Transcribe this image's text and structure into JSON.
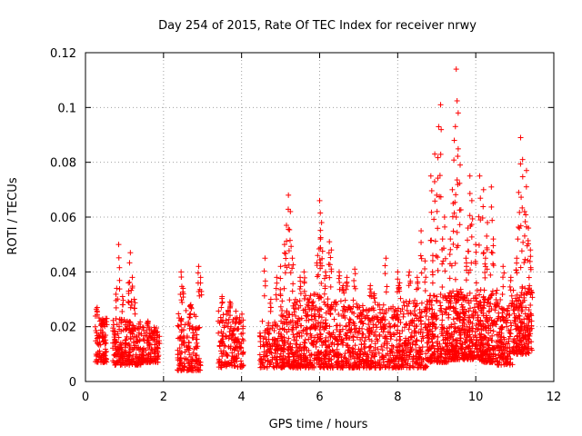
{
  "chart_data": {
    "type": "scatter",
    "title": "Day 254 of 2015, Rate Of TEC Index for receiver nrwy",
    "xlabel": "GPS time / hours",
    "ylabel": "ROTI / TECUs",
    "xlim": [
      0,
      12
    ],
    "ylim": [
      0,
      0.12
    ],
    "xticks": [
      0,
      2,
      4,
      6,
      8,
      10,
      12
    ],
    "xtick_labels": [
      "0",
      "2",
      "4",
      "6",
      "8",
      "10",
      "12"
    ],
    "yticks": [
      0,
      0.02,
      0.04,
      0.06,
      0.08,
      0.1,
      0.12
    ],
    "ytick_labels": [
      "0",
      "0.02",
      "0.04",
      "0.06",
      "0.08",
      "0.1",
      "0.12"
    ],
    "grid": true,
    "marker": "+",
    "series": [
      {
        "name": "ROTI",
        "color": "#ff0000",
        "clusters": [
          {
            "x": [
              0.25,
              0.55
            ],
            "y": [
              0.007,
              0.024
            ],
            "n": 90,
            "peaks": [
              [
                0.3,
                0.027
              ],
              [
                0.45,
                0.021
              ]
            ]
          },
          {
            "x": [
              0.7,
              1.05
            ],
            "y": [
              0.006,
              0.024
            ],
            "n": 110,
            "peaks": [
              [
                0.85,
                0.05
              ],
              [
                0.8,
                0.034
              ],
              [
                0.95,
                0.031
              ]
            ]
          },
          {
            "x": [
              1.05,
              1.45
            ],
            "y": [
              0.006,
              0.022
            ],
            "n": 120,
            "peaks": [
              [
                1.15,
                0.047
              ],
              [
                1.2,
                0.038
              ],
              [
                1.1,
                0.036
              ],
              [
                1.25,
                0.03
              ]
            ]
          },
          {
            "x": [
              1.45,
              1.9
            ],
            "y": [
              0.007,
              0.02
            ],
            "n": 120,
            "peaks": [
              [
                1.6,
                0.022
              ]
            ]
          },
          {
            "x": [
              2.35,
              2.95
            ],
            "y": [
              0.004,
              0.026
            ],
            "n": 160,
            "peaks": [
              [
                2.45,
                0.04
              ],
              [
                2.5,
                0.034
              ],
              [
                2.7,
                0.028
              ],
              [
                2.9,
                0.042
              ],
              [
                2.95,
                0.038
              ]
            ]
          },
          {
            "x": [
              3.4,
              4.05
            ],
            "y": [
              0.005,
              0.026
            ],
            "n": 170,
            "peaks": [
              [
                3.5,
                0.031
              ],
              [
                3.7,
                0.029
              ]
            ]
          },
          {
            "x": [
              4.45,
              5.05
            ],
            "y": [
              0.005,
              0.022
            ],
            "n": 130,
            "peaks": [
              [
                4.6,
                0.045
              ],
              [
                4.9,
                0.038
              ],
              [
                5.0,
                0.042
              ],
              [
                4.75,
                0.03
              ]
            ]
          },
          {
            "x": [
              5.0,
              5.6
            ],
            "y": [
              0.005,
              0.03
            ],
            "n": 200,
            "peaks": [
              [
                5.2,
                0.068
              ],
              [
                5.15,
                0.057
              ],
              [
                5.25,
                0.062
              ],
              [
                5.1,
                0.05
              ],
              [
                5.3,
                0.045
              ],
              [
                5.5,
                0.038
              ],
              [
                5.6,
                0.04
              ]
            ]
          },
          {
            "x": [
              5.6,
              6.3
            ],
            "y": [
              0.005,
              0.032
            ],
            "n": 240,
            "peaks": [
              [
                6.0,
                0.066
              ],
              [
                6.05,
                0.058
              ],
              [
                6.02,
                0.052
              ],
              [
                5.95,
                0.046
              ],
              [
                6.25,
                0.051
              ],
              [
                6.3,
                0.048
              ],
              [
                6.15,
                0.04
              ]
            ]
          },
          {
            "x": [
              6.3,
              7.0
            ],
            "y": [
              0.005,
              0.03
            ],
            "n": 200,
            "peaks": [
              [
                6.5,
                0.04
              ],
              [
                6.7,
                0.038
              ],
              [
                6.9,
                0.041
              ],
              [
                6.6,
                0.035
              ]
            ]
          },
          {
            "x": [
              7.0,
              7.6
            ],
            "y": [
              0.005,
              0.028
            ],
            "n": 180,
            "peaks": [
              [
                7.3,
                0.035
              ],
              [
                7.4,
                0.032
              ]
            ]
          },
          {
            "x": [
              7.6,
              8.15
            ],
            "y": [
              0.005,
              0.028
            ],
            "n": 170,
            "peaks": [
              [
                7.7,
                0.045
              ],
              [
                8.0,
                0.04
              ],
              [
                8.05,
                0.036
              ]
            ]
          },
          {
            "x": [
              8.15,
              8.75
            ],
            "y": [
              0.005,
              0.03
            ],
            "n": 170,
            "peaks": [
              [
                8.3,
                0.04
              ],
              [
                8.6,
                0.055
              ],
              [
                8.5,
                0.038
              ],
              [
                8.7,
                0.044
              ]
            ]
          },
          {
            "x": [
              8.75,
              9.3
            ],
            "y": [
              0.007,
              0.032
            ],
            "n": 200,
            "peaks": [
              [
                9.1,
                0.101
              ],
              [
                9.05,
                0.093
              ],
              [
                8.95,
                0.083
              ],
              [
                8.85,
                0.075
              ],
              [
                9.0,
                0.068
              ],
              [
                9.2,
                0.06
              ],
              [
                9.15,
                0.052
              ],
              [
                8.9,
                0.046
              ]
            ]
          },
          {
            "x": [
              9.3,
              9.7
            ],
            "y": [
              0.008,
              0.034
            ],
            "n": 180,
            "peaks": [
              [
                9.5,
                0.114
              ],
              [
                9.55,
                0.098
              ],
              [
                9.45,
                0.088
              ],
              [
                9.6,
                0.079
              ],
              [
                9.4,
                0.07
              ],
              [
                9.5,
                0.06
              ],
              [
                9.35,
                0.052
              ]
            ]
          },
          {
            "x": [
              9.7,
              10.15
            ],
            "y": [
              0.008,
              0.034
            ],
            "n": 180,
            "peaks": [
              [
                9.85,
                0.075
              ],
              [
                9.9,
                0.066
              ],
              [
                10.1,
                0.075
              ],
              [
                9.8,
                0.056
              ],
              [
                10.0,
                0.05
              ],
              [
                9.75,
                0.045
              ]
            ]
          },
          {
            "x": [
              10.15,
              10.55
            ],
            "y": [
              0.007,
              0.034
            ],
            "n": 160,
            "peaks": [
              [
                10.2,
                0.07
              ],
              [
                10.4,
                0.071
              ],
              [
                10.3,
                0.058
              ],
              [
                10.45,
                0.052
              ],
              [
                10.25,
                0.045
              ]
            ]
          },
          {
            "x": [
              10.55,
              10.95
            ],
            "y": [
              0.006,
              0.03
            ],
            "n": 130,
            "peaks": [
              [
                10.7,
                0.042
              ],
              [
                10.9,
                0.038
              ]
            ]
          },
          {
            "x": [
              10.95,
              11.45
            ],
            "y": [
              0.01,
              0.035
            ],
            "n": 190,
            "peaks": [
              [
                11.15,
                0.089
              ],
              [
                11.2,
                0.081
              ],
              [
                11.3,
                0.077
              ],
              [
                11.1,
                0.069
              ],
              [
                11.25,
                0.062
              ],
              [
                11.35,
                0.056
              ],
              [
                11.4,
                0.048
              ],
              [
                11.05,
                0.045
              ]
            ]
          }
        ]
      }
    ]
  }
}
